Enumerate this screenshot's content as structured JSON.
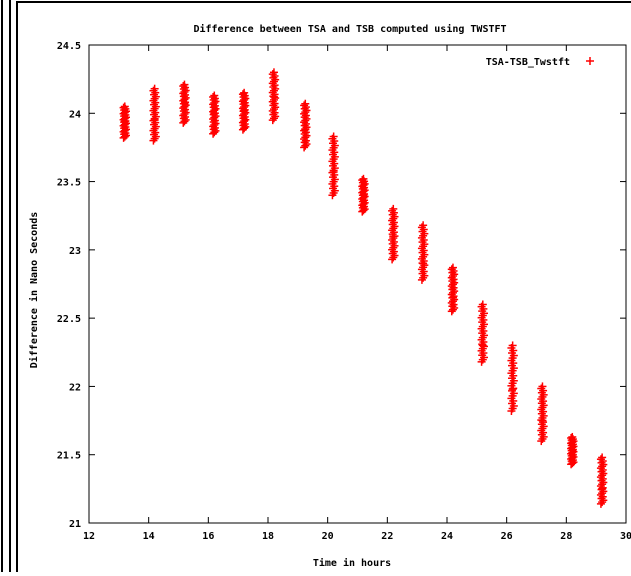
{
  "chart_data": {
    "type": "scatter",
    "title": "Difference between TSA and TSB computed using TWSTFT",
    "xlabel": "Time in hours",
    "ylabel": "Difference in Nano Seconds",
    "xlim": [
      12,
      30
    ],
    "ylim": [
      21,
      24.5
    ],
    "xticks": [
      12,
      14,
      16,
      18,
      20,
      22,
      24,
      26,
      28,
      30
    ],
    "xtick_labels": [
      "12",
      "14",
      "16",
      "18",
      "20",
      "22",
      "24",
      "26",
      "28",
      "30"
    ],
    "yticks": [
      21,
      21.5,
      22,
      22.5,
      23,
      23.5,
      24,
      24.5
    ],
    "ytick_labels": [
      "21",
      "21.5",
      "22",
      "22.5",
      "23",
      "23.5",
      "24",
      "24.5"
    ],
    "legend_position": "top-right",
    "grid": false,
    "marker": "+",
    "series": [
      {
        "name": "TSA-TSB_Twstft",
        "color": "#ff0000",
        "clusters": [
          {
            "x": 13.2,
            "y_min": 23.82,
            "y_max": 24.05,
            "y_mid": 23.94
          },
          {
            "x": 14.2,
            "y_min": 23.8,
            "y_max": 24.18,
            "y_mid": 23.95
          },
          {
            "x": 15.2,
            "y_min": 23.93,
            "y_max": 24.21,
            "y_mid": 24.07
          },
          {
            "x": 16.2,
            "y_min": 23.85,
            "y_max": 24.13,
            "y_mid": 24.0
          },
          {
            "x": 17.2,
            "y_min": 23.88,
            "y_max": 24.15,
            "y_mid": 24.02
          },
          {
            "x": 18.2,
            "y_min": 23.95,
            "y_max": 24.3,
            "y_mid": 24.12
          },
          {
            "x": 19.25,
            "y_min": 23.75,
            "y_max": 24.07,
            "y_mid": 23.88
          },
          {
            "x": 20.2,
            "y_min": 23.4,
            "y_max": 23.83,
            "y_mid": 23.57
          },
          {
            "x": 21.2,
            "y_min": 23.28,
            "y_max": 23.52,
            "y_mid": 23.4
          },
          {
            "x": 22.2,
            "y_min": 22.93,
            "y_max": 23.3,
            "y_mid": 23.1
          },
          {
            "x": 23.2,
            "y_min": 22.78,
            "y_max": 23.18,
            "y_mid": 22.9
          },
          {
            "x": 24.2,
            "y_min": 22.55,
            "y_max": 22.87,
            "y_mid": 22.65
          },
          {
            "x": 25.2,
            "y_min": 22.18,
            "y_max": 22.6,
            "y_mid": 22.3
          },
          {
            "x": 26.2,
            "y_min": 21.82,
            "y_max": 22.3,
            "y_mid": 21.98
          },
          {
            "x": 27.2,
            "y_min": 21.6,
            "y_max": 22.0,
            "y_mid": 21.75
          },
          {
            "x": 28.2,
            "y_min": 21.43,
            "y_max": 21.63,
            "y_mid": 21.53
          },
          {
            "x": 29.2,
            "y_min": 21.14,
            "y_max": 21.48,
            "y_mid": 21.25
          }
        ]
      }
    ]
  }
}
